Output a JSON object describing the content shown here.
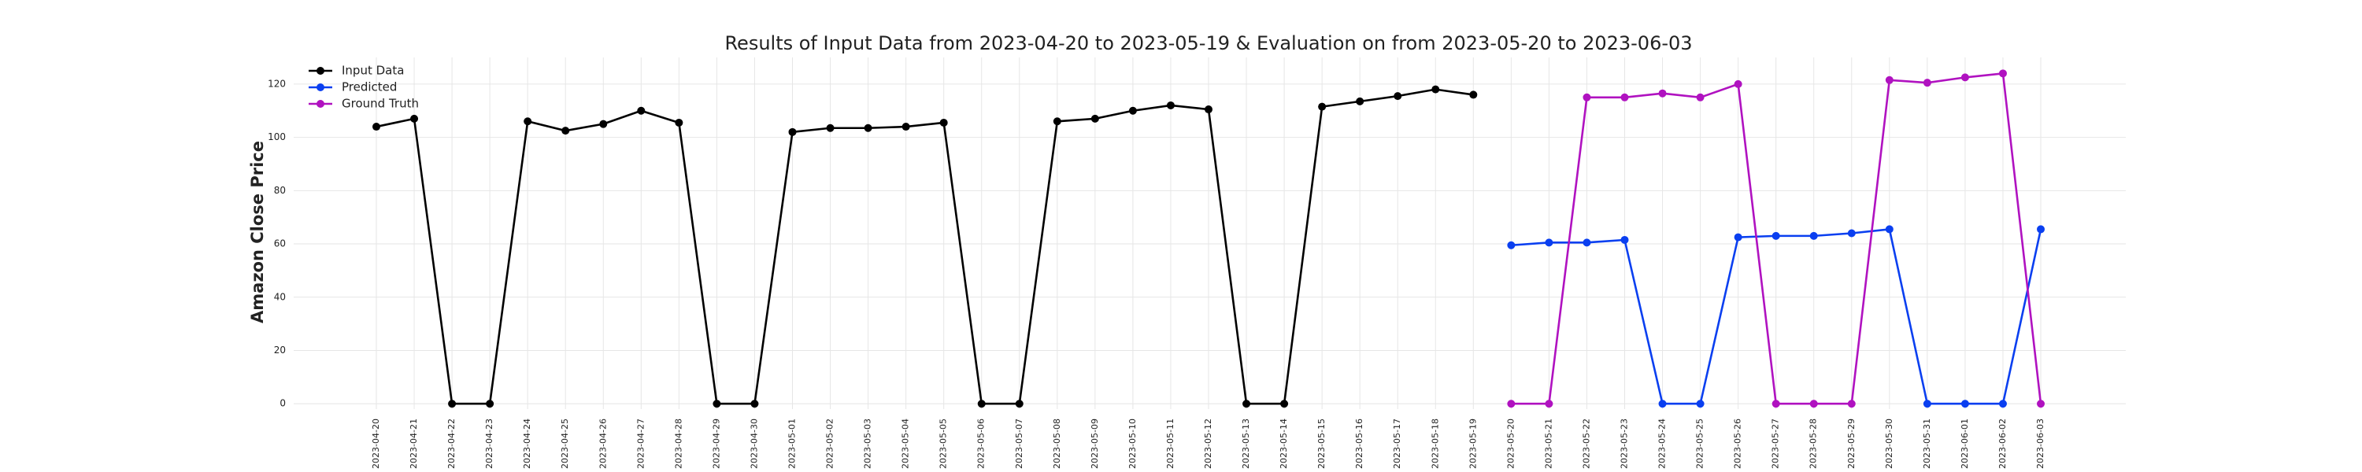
{
  "chart_data": {
    "type": "line",
    "title": "Results of Input Data from 2023-04-20 to 2023-05-19 & Evaluation on from 2023-05-20 to 2023-06-03",
    "ylabel": "Amazon Close Price",
    "categories": [
      "2023-04-20",
      "2023-04-21",
      "2023-04-22",
      "2023-04-23",
      "2023-04-24",
      "2023-04-25",
      "2023-04-26",
      "2023-04-27",
      "2023-04-28",
      "2023-04-29",
      "2023-04-30",
      "2023-05-01",
      "2023-05-02",
      "2023-05-03",
      "2023-05-04",
      "2023-05-05",
      "2023-05-06",
      "2023-05-07",
      "2023-05-08",
      "2023-05-09",
      "2023-05-10",
      "2023-05-11",
      "2023-05-12",
      "2023-05-13",
      "2023-05-14",
      "2023-05-15",
      "2023-05-16",
      "2023-05-17",
      "2023-05-18",
      "2023-05-19",
      "2023-05-20",
      "2023-05-21",
      "2023-05-22",
      "2023-05-23",
      "2023-05-24",
      "2023-05-25",
      "2023-05-26",
      "2023-05-27",
      "2023-05-28",
      "2023-05-29",
      "2023-05-30",
      "2023-05-31",
      "2023-06-01",
      "2023-06-02",
      "2023-06-03"
    ],
    "series": [
      {
        "name": "Input Data",
        "color": "#000000",
        "values": [
          104,
          107,
          0,
          0,
          106,
          102.5,
          105,
          110,
          105.5,
          0,
          0,
          102,
          103.5,
          103.5,
          104,
          105.5,
          0,
          0,
          106,
          107,
          110,
          112,
          110.5,
          0,
          0,
          111.5,
          113.5,
          115.5,
          118,
          116,
          null,
          null,
          null,
          null,
          null,
          null,
          null,
          null,
          null,
          null,
          null,
          null,
          null,
          null,
          null
        ]
      },
      {
        "name": "Predicted",
        "color": "#0a3ff0",
        "values": [
          null,
          null,
          null,
          null,
          null,
          null,
          null,
          null,
          null,
          null,
          null,
          null,
          null,
          null,
          null,
          null,
          null,
          null,
          null,
          null,
          null,
          null,
          null,
          null,
          null,
          null,
          null,
          null,
          null,
          null,
          59.5,
          60.5,
          60.5,
          61.5,
          0,
          0,
          62.5,
          63,
          63,
          64,
          65.5,
          0,
          0,
          0,
          65.5
        ]
      },
      {
        "name": "Ground Truth",
        "color": "#b012c0",
        "values": [
          null,
          null,
          null,
          null,
          null,
          null,
          null,
          null,
          null,
          null,
          null,
          null,
          null,
          null,
          null,
          null,
          null,
          null,
          null,
          null,
          null,
          null,
          null,
          null,
          null,
          null,
          null,
          null,
          null,
          null,
          0,
          0,
          115,
          115,
          116.5,
          115,
          120,
          0,
          0,
          0,
          121.5,
          120.5,
          122.5,
          124,
          0
        ]
      }
    ],
    "ylim": [
      -2,
      130
    ],
    "yticks": [
      0,
      20,
      40,
      60,
      80,
      100,
      120
    ],
    "grid": true,
    "legend": "upper left"
  }
}
